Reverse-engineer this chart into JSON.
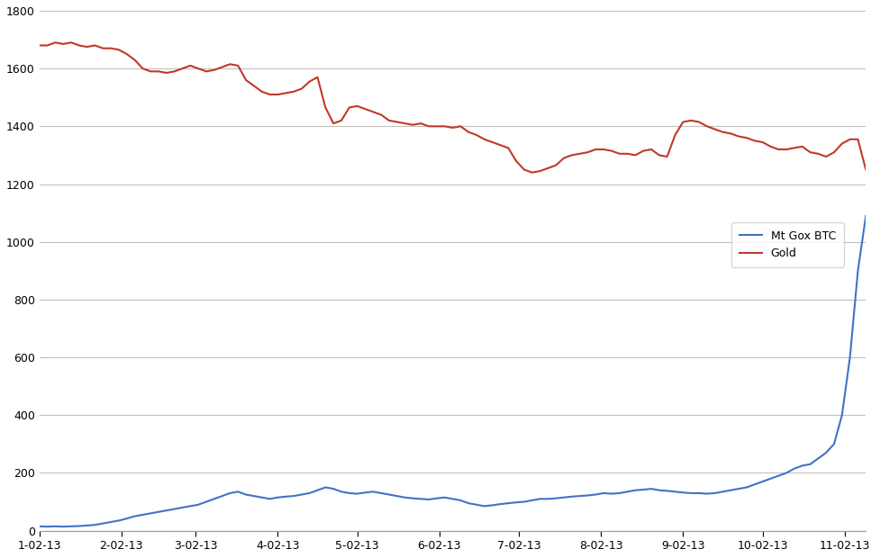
{
  "btc_dates": [
    0,
    3,
    6,
    9,
    12,
    15,
    18,
    21,
    24,
    27,
    30,
    33,
    36,
    39,
    42,
    45,
    48,
    51,
    54,
    57,
    60,
    63,
    66,
    69,
    72,
    75,
    78,
    81,
    84,
    87,
    90,
    93,
    96,
    99,
    102,
    105,
    108,
    111,
    114,
    117,
    120,
    123,
    126,
    129,
    132,
    135,
    138,
    141,
    144,
    147,
    150,
    153,
    156,
    159,
    162,
    165,
    168,
    171,
    174,
    177,
    180,
    183,
    186,
    189,
    192,
    195,
    198,
    201,
    204,
    207,
    210,
    213,
    216,
    219,
    222,
    225,
    228,
    231,
    234,
    237,
    240,
    243,
    246,
    249,
    252,
    255,
    258,
    261,
    264,
    267,
    270,
    273,
    276,
    279,
    282,
    285,
    288,
    291,
    294,
    297,
    300,
    303,
    306,
    309,
    312
  ],
  "btc_values": [
    15,
    14,
    15,
    14,
    15,
    16,
    18,
    20,
    25,
    30,
    35,
    42,
    50,
    55,
    60,
    65,
    70,
    75,
    80,
    85,
    90,
    100,
    110,
    120,
    130,
    135,
    125,
    120,
    115,
    110,
    115,
    118,
    120,
    125,
    130,
    140,
    150,
    145,
    135,
    130,
    128,
    132,
    135,
    130,
    125,
    120,
    115,
    112,
    110,
    108,
    112,
    115,
    110,
    105,
    95,
    90,
    85,
    88,
    92,
    95,
    98,
    100,
    105,
    110,
    110,
    112,
    115,
    118,
    120,
    122,
    125,
    130,
    128,
    130,
    135,
    140,
    142,
    145,
    140,
    138,
    135,
    132,
    130,
    130,
    128,
    130,
    135,
    140,
    145,
    150,
    160,
    170,
    180,
    190,
    200,
    215,
    225,
    230,
    250,
    270,
    300,
    400,
    600,
    900,
    1090
  ],
  "gold_dates": [
    0,
    3,
    6,
    9,
    12,
    15,
    18,
    21,
    24,
    27,
    30,
    33,
    36,
    39,
    42,
    45,
    48,
    51,
    54,
    57,
    60,
    63,
    66,
    69,
    72,
    75,
    78,
    81,
    84,
    87,
    90,
    93,
    96,
    99,
    102,
    105,
    108,
    111,
    114,
    117,
    120,
    123,
    126,
    129,
    132,
    135,
    138,
    141,
    144,
    147,
    150,
    153,
    156,
    159,
    162,
    165,
    168,
    171,
    174,
    177,
    180,
    183,
    186,
    189,
    192,
    195,
    198,
    201,
    204,
    207,
    210,
    213,
    216,
    219,
    222,
    225,
    228,
    231,
    234,
    237,
    240,
    243,
    246,
    249,
    252,
    255,
    258,
    261,
    264,
    267,
    270,
    273,
    276,
    279,
    282,
    285,
    288,
    291,
    294,
    297,
    300,
    303,
    306,
    309,
    312
  ],
  "gold_values": [
    1680,
    1680,
    1690,
    1685,
    1690,
    1680,
    1675,
    1680,
    1670,
    1670,
    1665,
    1650,
    1630,
    1600,
    1590,
    1590,
    1585,
    1590,
    1600,
    1610,
    1600,
    1590,
    1595,
    1605,
    1615,
    1610,
    1560,
    1540,
    1520,
    1510,
    1510,
    1515,
    1520,
    1530,
    1555,
    1570,
    1465,
    1410,
    1420,
    1465,
    1470,
    1460,
    1450,
    1440,
    1420,
    1415,
    1410,
    1405,
    1410,
    1400,
    1400,
    1400,
    1395,
    1400,
    1380,
    1370,
    1355,
    1345,
    1335,
    1325,
    1280,
    1250,
    1240,
    1245,
    1255,
    1265,
    1290,
    1300,
    1305,
    1310,
    1320,
    1320,
    1315,
    1305,
    1305,
    1300,
    1315,
    1320,
    1300,
    1295,
    1370,
    1415,
    1420,
    1415,
    1400,
    1390,
    1380,
    1375,
    1365,
    1360,
    1350,
    1345,
    1330,
    1320,
    1320,
    1325,
    1330,
    1310,
    1305,
    1295,
    1310,
    1340,
    1355,
    1355,
    1250
  ],
  "xtick_positions": [
    0,
    31,
    59,
    90,
    120,
    151,
    181,
    212,
    243,
    273,
    304
  ],
  "xtick_labels": [
    "1-02-13",
    "2-02-13",
    "3-02-13",
    "4-02-13",
    "5-02-13",
    "6-02-13",
    "7-02-13",
    "8-02-13",
    "9-02-13",
    "10-02-13",
    "11-02-13"
  ],
  "ylim": [
    0,
    1800
  ],
  "yticks": [
    0,
    200,
    400,
    600,
    800,
    1000,
    1200,
    1400,
    1600,
    1800
  ],
  "btc_color": "#4472C4",
  "gold_color": "#C0392B",
  "legend_labels": [
    "Mt Gox BTC",
    "Gold"
  ],
  "bg_color": "#FFFFFF",
  "grid_color": "#C0C0C0",
  "line_width": 1.5
}
